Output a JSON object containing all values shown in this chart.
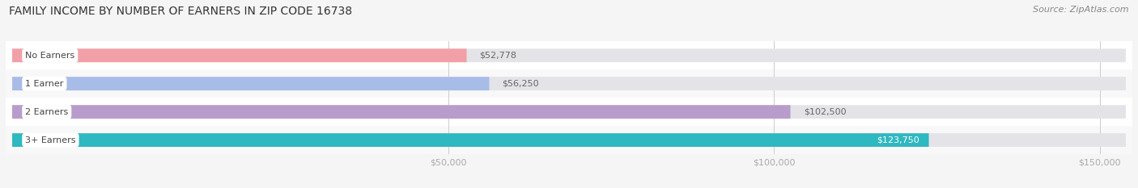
{
  "title": "FAMILY INCOME BY NUMBER OF EARNERS IN ZIP CODE 16738",
  "source": "Source: ZipAtlas.com",
  "categories": [
    "No Earners",
    "1 Earner",
    "2 Earners",
    "3+ Earners"
  ],
  "values": [
    52778,
    56250,
    102500,
    123750
  ],
  "bar_colors": [
    "#f2a0a8",
    "#a8bce8",
    "#b89ccc",
    "#2eb8c0"
  ],
  "value_labels": [
    "$52,778",
    "$56,250",
    "$102,500",
    "$123,750"
  ],
  "value_label_inside": [
    false,
    false,
    false,
    true
  ],
  "xlim_start": -18000,
  "xlim_end": 155000,
  "xticks": [
    50000,
    100000,
    150000
  ],
  "xtick_labels": [
    "$50,000",
    "$100,000",
    "$150,000"
  ],
  "background_color": "#f5f5f5",
  "bar_bg_color": "#e4e4e8",
  "row_bg_colors": [
    "#ffffff",
    "#f8f8f8",
    "#ffffff",
    "#f8f8f8"
  ],
  "title_fontsize": 10,
  "source_fontsize": 8,
  "bar_height": 0.48,
  "figsize": [
    14.06,
    2.33
  ],
  "dpi": 100
}
